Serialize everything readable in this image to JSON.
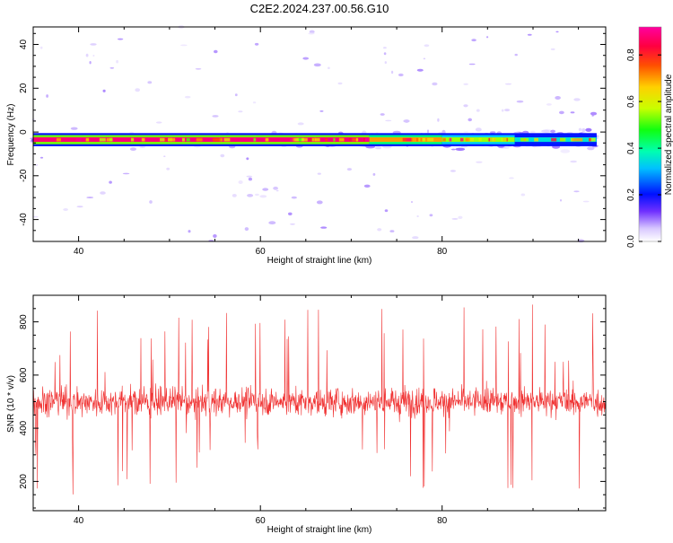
{
  "title": "C2E2.2024.237.00.56.G10",
  "chart_data": [
    {
      "type": "heatmap",
      "title": "",
      "xlabel": "Height of straight line (km)",
      "ylabel": "Frequency (Hz)",
      "xlim": [
        35,
        98
      ],
      "ylim": [
        -50,
        48
      ],
      "x_ticks": [
        40,
        60,
        80
      ],
      "y_ticks": [
        -40,
        -20,
        0,
        20,
        40
      ],
      "band": {
        "frequency_center": -3.5,
        "frequency_halfwidth": 1.5,
        "x_start": 35,
        "x_end": 97
      },
      "band_segments": [
        {
          "x0": 35,
          "x1": 72,
          "amplitude": 0.88
        },
        {
          "x0": 72,
          "x1": 80,
          "amplitude": 0.7
        },
        {
          "x0": 80,
          "x1": 88,
          "amplitude": 0.55
        },
        {
          "x0": 88,
          "x1": 97,
          "amplitude": 0.35
        }
      ],
      "colorbar": {
        "label": "Normalized spectral amplitude",
        "ticks": [
          "0.0",
          "0.2",
          "0.4",
          "0.6",
          "0.8"
        ],
        "range": [
          0,
          0.92
        ]
      }
    },
    {
      "type": "line",
      "title": "",
      "xlabel": "Height of straight line (km)",
      "ylabel": "SNR (10 * v/v)",
      "xlim": [
        35,
        98
      ],
      "ylim": [
        90,
        900
      ],
      "x_ticks": [
        40,
        60,
        80
      ],
      "y_ticks": [
        200,
        400,
        600,
        800
      ],
      "color": "#f03030",
      "summary": {
        "n_points": 1500,
        "mean": 500,
        "min": 100,
        "max": 890
      }
    }
  ]
}
